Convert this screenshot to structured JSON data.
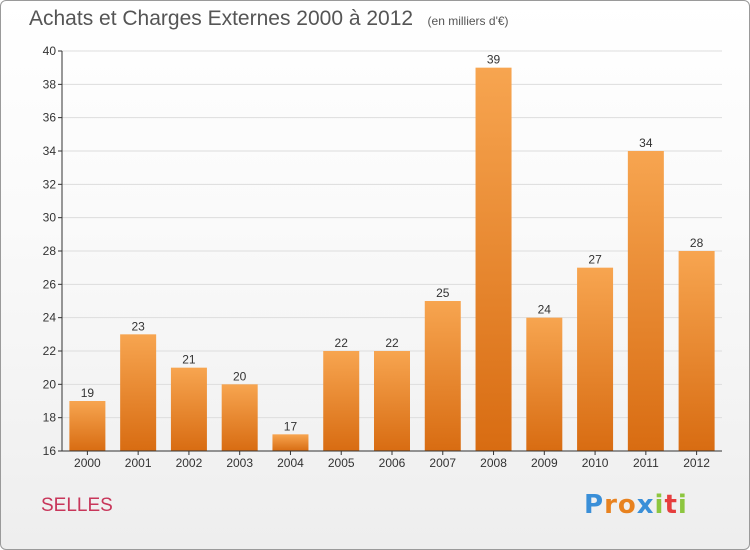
{
  "title": "Achats et Charges Externes 2000 à 2012",
  "subtitle": "(en milliers d'€)",
  "commune": "SELLES",
  "brand": {
    "letters": [
      "P",
      "r",
      "o",
      "x",
      "i",
      "t",
      "i"
    ],
    "colors": [
      "#3a8fd8",
      "#e8821f",
      "#e8821f",
      "#3a8fd8",
      "#8dc63f",
      "#e63e3e",
      "#8dc63f"
    ]
  },
  "colors": {
    "bar_top": "#f7a550",
    "bar_bottom": "#d86c12",
    "grid": "#dddddd",
    "axis": "#333333",
    "text": "#333333"
  },
  "chart_data": {
    "type": "bar",
    "categories": [
      "2000",
      "2001",
      "2002",
      "2003",
      "2004",
      "2005",
      "2006",
      "2007",
      "2008",
      "2009",
      "2010",
      "2011",
      "2012"
    ],
    "values": [
      19,
      23,
      21,
      20,
      17,
      22,
      22,
      25,
      39,
      24,
      27,
      34,
      28
    ],
    "ylim": [
      16,
      40
    ],
    "yticks": [
      16,
      18,
      20,
      22,
      24,
      26,
      28,
      30,
      32,
      34,
      36,
      38,
      40
    ],
    "grid": true,
    "data_labels": true
  }
}
